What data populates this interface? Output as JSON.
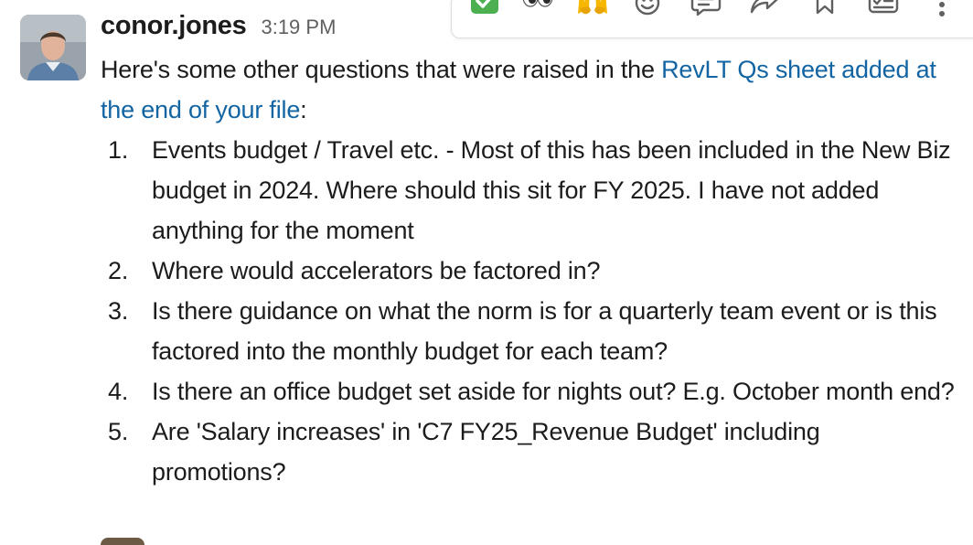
{
  "message": {
    "author": "conor.jones",
    "timestamp": "3:19 PM",
    "intro_before_link": "Here's some other questions that were raised in the ",
    "link_text": "RevLT Qs sheet added at the end of your file",
    "intro_after_link": ":",
    "items": [
      {
        "number": "1.",
        "text": "Events budget / Travel etc. - Most of this has been included in the New Biz budget in 2024. Where should this sit for FY 2025. I have not added anything for the moment"
      },
      {
        "number": "2.",
        "text": "Where would accelerators be factored in?"
      },
      {
        "number": "3.",
        "text": "Is there guidance on what the norm is for a quarterly team event or is this factored into the monthly budget for each team?"
      },
      {
        "number": "4.",
        "text": "Is there an office budget set aside for nights out? E.g. October month end?"
      },
      {
        "number": "5.",
        "text": "Are 'Salary increases' in 'C7 FY25_Revenue Budget' including promotions?"
      }
    ]
  },
  "toolbar": {
    "buttons": [
      {
        "icon": "check-mark-emoji"
      },
      {
        "icon": "eyes-emoji"
      },
      {
        "icon": "raised-hands-emoji"
      },
      {
        "icon": "add-reaction-icon"
      },
      {
        "icon": "reply-in-thread-icon"
      },
      {
        "icon": "forward-icon"
      },
      {
        "icon": "bookmark-icon"
      },
      {
        "icon": "add-to-list-icon"
      },
      {
        "icon": "more-actions-icon"
      }
    ]
  },
  "colors": {
    "link": "#1264a3",
    "text": "#1d1c1d",
    "timestamp": "#616061",
    "toolbar_icon": "#616061",
    "check_green": "#4caf50"
  }
}
